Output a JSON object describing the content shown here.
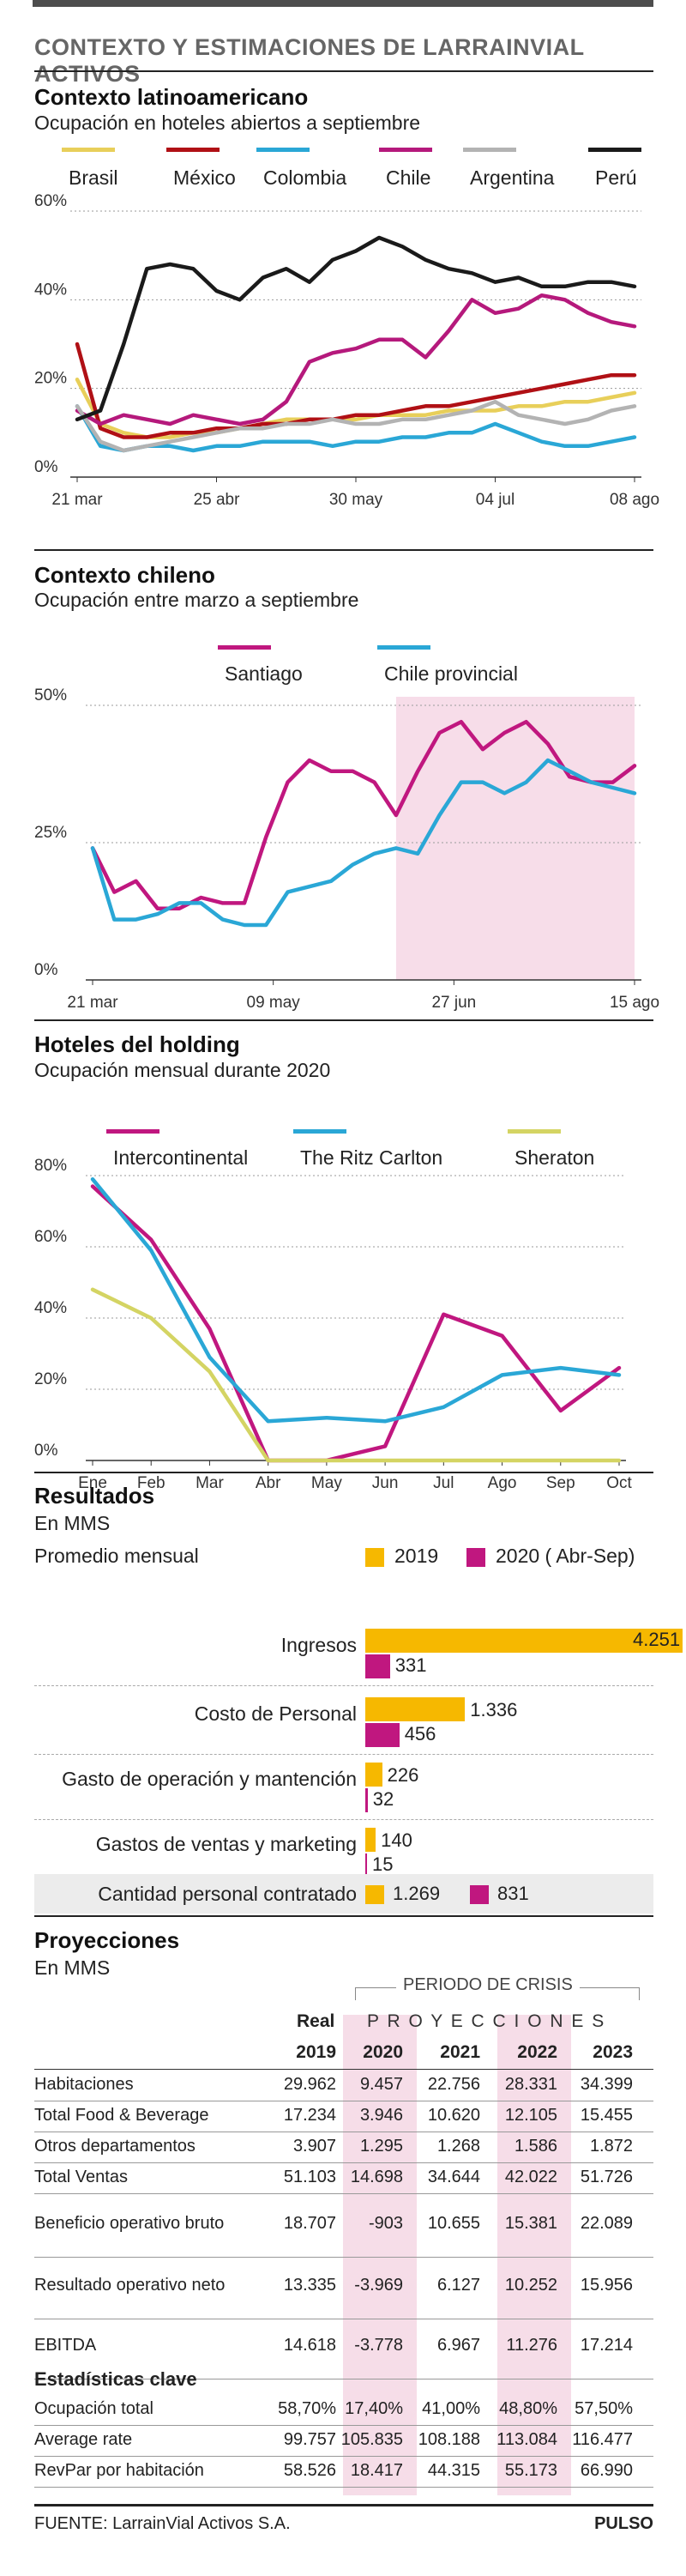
{
  "header": {
    "title": "CONTEXTO Y ESTIMACIONES DE LARRAINVIAL ACTIVOS"
  },
  "colors": {
    "brasil": "#e8cf5a",
    "mexico": "#b01015",
    "colombia": "#2aa7d6",
    "chile": "#b5197c",
    "argentina": "#b3b3b3",
    "peru": "#1a1a1a",
    "santiago": "#c0177f",
    "provincial": "#2aa7d6",
    "highlight": "#f7dde9",
    "intercontinental": "#c0177f",
    "ritz": "#2aa7d6",
    "sheraton": "#d4d463",
    "bar2019": "#f6b800",
    "bar2020": "#c0177f",
    "crisis": "#f6dde8"
  },
  "latam": {
    "title": "Contexto latinoamericano",
    "subtitle": "Ocupación en hoteles abiertos a septiembre",
    "legend": [
      "Brasil",
      "México",
      "Colombia",
      "Chile",
      "Argentina",
      "Perú"
    ]
  },
  "chilean": {
    "title": "Contexto chileno",
    "subtitle": "Ocupación entre marzo a septiembre",
    "legend": [
      "Santiago",
      "Chile provincial"
    ]
  },
  "holding": {
    "title": "Hoteles del holding",
    "subtitle": "Ocupación mensual durante 2020",
    "legend": [
      "Intercontinental",
      "The Ritz Carlton",
      "Sheraton"
    ]
  },
  "chart_data": [
    {
      "type": "line",
      "title": "Contexto latinoamericano",
      "subtitle": "Ocupación en hoteles abiertos a septiembre",
      "x_ticks": [
        "21 mar",
        "25 abr",
        "30 may",
        "04 jul",
        "08 ago"
      ],
      "y_ticks": [
        "0%",
        "20%",
        "40%",
        "60%"
      ],
      "ylim": [
        0,
        60
      ],
      "x_count": 25,
      "series": [
        {
          "name": "Brasil",
          "values": [
            22,
            12,
            10,
            9,
            9,
            10,
            10,
            11,
            12,
            13,
            13,
            13,
            13,
            14,
            14,
            14,
            15,
            15,
            15,
            16,
            16,
            17,
            17,
            18,
            19
          ]
        },
        {
          "name": "México",
          "values": [
            30,
            11,
            9,
            9,
            10,
            10,
            11,
            11,
            12,
            12,
            13,
            13,
            14,
            14,
            15,
            16,
            16,
            17,
            18,
            19,
            20,
            21,
            22,
            23,
            23
          ]
        },
        {
          "name": "Colombia",
          "values": [
            16,
            7,
            6,
            7,
            7,
            6,
            7,
            7,
            8,
            8,
            8,
            7,
            8,
            8,
            9,
            9,
            10,
            10,
            12,
            10,
            8,
            7,
            7,
            8,
            9
          ]
        },
        {
          "name": "Chile",
          "values": [
            15,
            12,
            14,
            13,
            12,
            14,
            13,
            12,
            13,
            17,
            26,
            28,
            29,
            31,
            31,
            27,
            33,
            40,
            37,
            38,
            41,
            40,
            37,
            35,
            34
          ]
        },
        {
          "name": "Argentina",
          "values": [
            16,
            8,
            6,
            7,
            8,
            9,
            10,
            11,
            11,
            12,
            12,
            13,
            12,
            12,
            13,
            13,
            14,
            15,
            17,
            14,
            13,
            12,
            13,
            15,
            16
          ]
        },
        {
          "name": "Perú",
          "values": [
            13,
            15,
            30,
            47,
            48,
            47,
            42,
            40,
            45,
            47,
            44,
            49,
            51,
            54,
            52,
            49,
            47,
            46,
            44,
            45,
            43,
            43,
            44,
            44,
            43
          ]
        }
      ]
    },
    {
      "type": "line",
      "title": "Contexto chileno",
      "subtitle": "Ocupación entre marzo a septiembre",
      "x_ticks": [
        "21 mar",
        "09 may",
        "27 jun",
        "15 ago"
      ],
      "y_ticks": [
        "0%",
        "25%",
        "50%"
      ],
      "ylim": [
        0,
        50
      ],
      "x_count": 26,
      "highlight_range": [
        14,
        25
      ],
      "series": [
        {
          "name": "Santiago",
          "values": [
            24,
            16,
            18,
            13,
            13,
            15,
            14,
            14,
            26,
            36,
            40,
            38,
            38,
            36,
            30,
            38,
            45,
            47,
            42,
            45,
            47,
            43,
            37,
            36,
            36,
            39
          ]
        },
        {
          "name": "Chile provincial",
          "values": [
            24,
            11,
            11,
            12,
            14,
            14,
            11,
            10,
            10,
            16,
            17,
            18,
            21,
            23,
            24,
            23,
            30,
            36,
            36,
            34,
            36,
            40,
            38,
            36,
            35,
            34
          ]
        }
      ]
    },
    {
      "type": "line",
      "title": "Hoteles del holding",
      "subtitle": "Ocupación mensual durante 2020",
      "categories": [
        "Ene",
        "Feb",
        "Mar",
        "Abr",
        "May",
        "Jun",
        "Jul",
        "Ago",
        "Sep",
        "Oct"
      ],
      "y_ticks": [
        "0%",
        "20%",
        "40%",
        "60%",
        "80%"
      ],
      "ylim": [
        0,
        80
      ],
      "series": [
        {
          "name": "Intercontinental",
          "values": [
            77,
            62,
            37,
            0,
            0,
            4,
            41,
            35,
            14,
            26
          ]
        },
        {
          "name": "The Ritz Carlton",
          "values": [
            79,
            59,
            29,
            11,
            12,
            11,
            15,
            24,
            26,
            24
          ]
        },
        {
          "name": "Sheraton",
          "values": [
            48,
            40,
            25,
            0,
            0,
            0,
            0,
            0,
            0,
            0
          ]
        }
      ]
    },
    {
      "type": "bar",
      "title": "Resultados",
      "subtitle": "En MMS",
      "promedio_label": "Promedio mensual",
      "legend": [
        "2019",
        "2020 ( Abr-Sep)"
      ],
      "categories": [
        "Ingresos",
        "Costo de Personal",
        "Gasto de operación y mantención",
        "Gastos de ventas y marketing"
      ],
      "series": [
        {
          "name": "2019",
          "values": [
            4251,
            1336,
            226,
            140
          ],
          "labels": [
            "4.251",
            "1.336",
            "226",
            "140"
          ]
        },
        {
          "name": "2020 ( Abr-Sep)",
          "values": [
            331,
            456,
            32,
            15
          ],
          "labels": [
            "331",
            "456",
            "32",
            "15"
          ]
        }
      ],
      "personal": {
        "label": "Cantidad personal contratado",
        "v2019": "1.269",
        "v2020": "831"
      }
    },
    {
      "type": "table",
      "title": "Proyecciones",
      "subtitle": "En MMS",
      "periodo_label": "PERIODO DE CRISIS",
      "real_label": "Real",
      "proyecciones_label": "P R O Y E C C I O N E S",
      "years": [
        "2019",
        "2020",
        "2021",
        "2022",
        "2023"
      ],
      "rows": [
        {
          "label": "Habitaciones",
          "values": [
            "29.962",
            "9.457",
            "22.756",
            "28.331",
            "34.399"
          ]
        },
        {
          "label": "Total Food & Beverage",
          "values": [
            "17.234",
            "3.946",
            "10.620",
            "12.105",
            "15.455"
          ]
        },
        {
          "label": "Otros departamentos",
          "values": [
            "3.907",
            "1.295",
            "1.268",
            "1.586",
            "1.872"
          ]
        },
        {
          "label": "Total Ventas",
          "values": [
            "51.103",
            "14.698",
            "34.644",
            "42.022",
            "51.726"
          ]
        },
        {
          "label": "Beneficio operativo bruto",
          "values": [
            "18.707",
            "-903",
            "10.655",
            "15.381",
            "22.089"
          ]
        },
        {
          "label": "Resultado operativo neto",
          "values": [
            "13.335",
            "-3.969",
            "6.127",
            "10.252",
            "15.956"
          ]
        },
        {
          "label": "EBITDA",
          "values": [
            "14.618",
            "-3.778",
            "6.967",
            "11.276",
            "17.214"
          ]
        }
      ],
      "stats_title": "Estadísticas clave",
      "stats": [
        {
          "label": "Ocupación total",
          "values": [
            "58,70%",
            "17,40%",
            "41,00%",
            "48,80%",
            "57,50%"
          ]
        },
        {
          "label": "Average rate",
          "values": [
            "99.757",
            "105.835",
            "108.188",
            "113.084",
            "116.477"
          ]
        },
        {
          "label": "RevPar por habitación",
          "values": [
            "58.526",
            "18.417",
            "44.315",
            "55.173",
            "66.990"
          ]
        }
      ]
    }
  ],
  "footer": {
    "source": "FUENTE: LarrainVial Activos S.A.",
    "brand": "PULSO"
  }
}
